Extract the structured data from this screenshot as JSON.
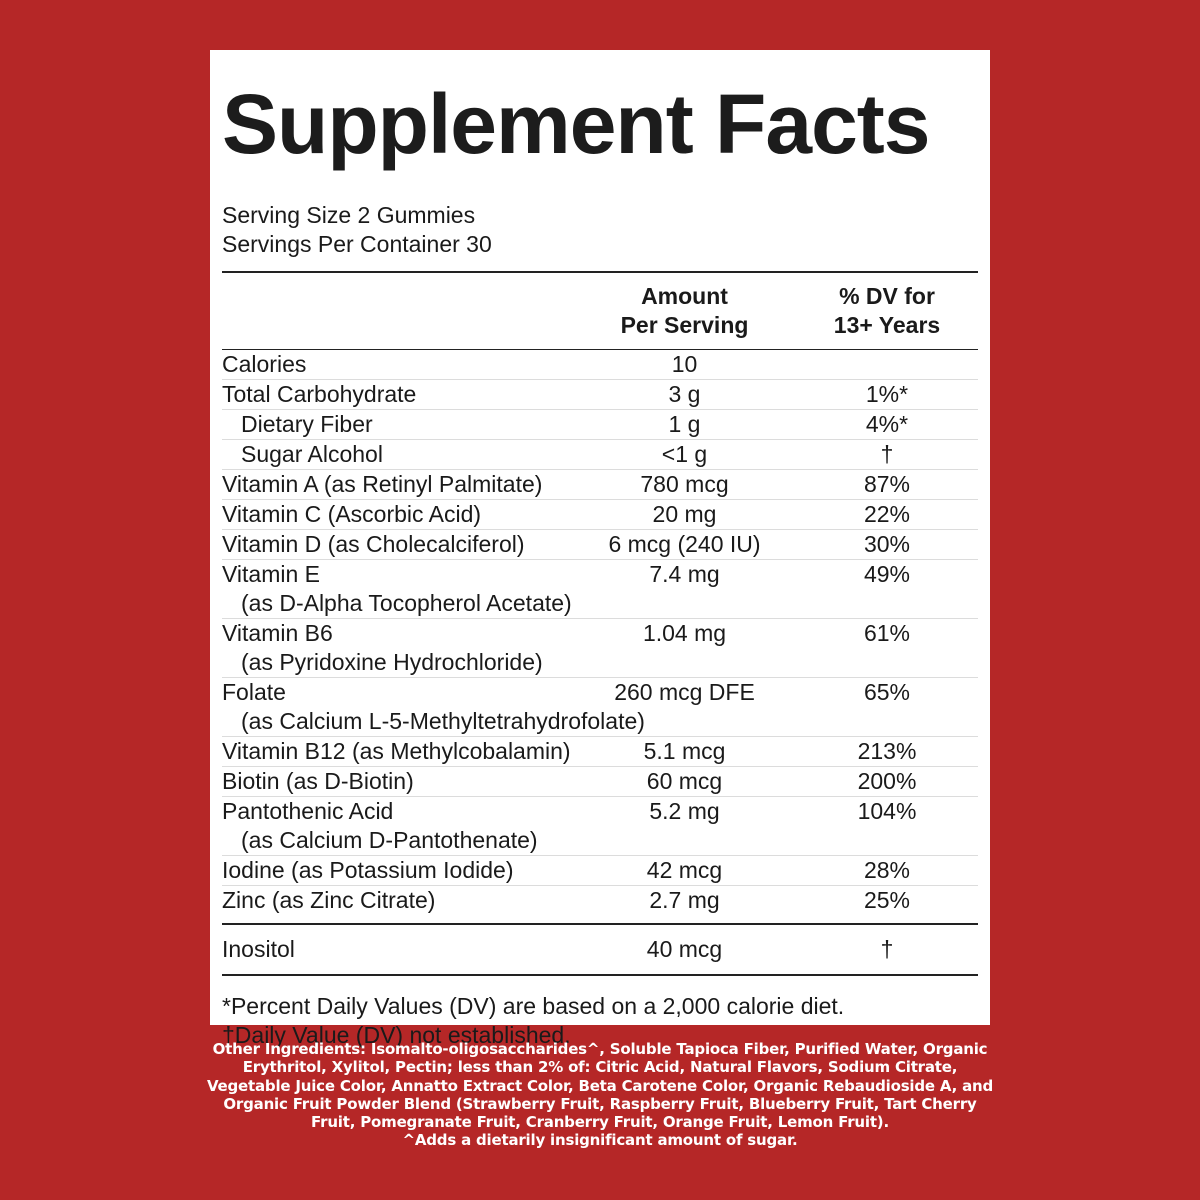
{
  "title": "Supplement Facts",
  "serving_size": "Serving Size 2 Gummies",
  "servings_per_container": "Servings Per Container 30",
  "columns": {
    "amount_line1": "Amount",
    "amount_line2": "Per Serving",
    "dv_line1": "% DV for",
    "dv_line2": "13+ Years"
  },
  "rows": [
    {
      "name": "Calories",
      "amount": "10",
      "dv": ""
    },
    {
      "name": "Total Carbohydrate",
      "amount": "3 g",
      "dv": "1%*"
    },
    {
      "name": "Dietary Fiber",
      "amount": "1 g",
      "dv": "4%*"
    },
    {
      "name": "Sugar Alcohol",
      "amount": "<1 g",
      "dv": "†"
    },
    {
      "name": "Vitamin A (as Retinyl Palmitate)",
      "amount": "780 mcg",
      "dv": "87%"
    },
    {
      "name": "Vitamin C (Ascorbic Acid)",
      "amount": "20 mg",
      "dv": "22%"
    },
    {
      "name": "Vitamin D (as Cholecalciferol)",
      "amount": "6 mcg (240 IU)",
      "dv": "30%"
    },
    {
      "name": "Vitamin E",
      "note": "(as D-Alpha Tocopherol Acetate)",
      "amount": "7.4 mg",
      "dv": "49%"
    },
    {
      "name": "Vitamin B6",
      "note": "(as Pyridoxine Hydrochloride)",
      "amount": "1.04 mg",
      "dv": "61%"
    },
    {
      "name": "Folate",
      "note": "(as Calcium L-5-Methyltetrahydrofolate)",
      "amount": "260 mcg DFE",
      "dv": "65%"
    },
    {
      "name": "Vitamin B12 (as Methylcobalamin)",
      "amount": "5.1 mcg",
      "dv": "213%"
    },
    {
      "name": "Biotin (as D-Biotin)",
      "amount": "60 mcg",
      "dv": "200%"
    },
    {
      "name": "Pantothenic Acid",
      "note": "(as Calcium D-Pantothenate)",
      "amount": "5.2 mg",
      "dv": "104%"
    },
    {
      "name": "Iodine (as Potassium Iodide)",
      "amount": "42 mcg",
      "dv": "28%"
    },
    {
      "name": "Zinc (as Zinc Citrate)",
      "amount": "2.7 mg",
      "dv": "25%"
    }
  ],
  "inositol": {
    "name": "Inositol",
    "amount": "40 mcg",
    "dv": "†"
  },
  "footnote1": "*Percent Daily Values (DV) are based on a 2,000 calorie diet.",
  "footnote2": "†Daily Value (DV) not established.",
  "other_ingredients": "Other Ingredients: Isomalto-oligosaccharides^, Soluble Tapioca Fiber, Purified Water, Organic Erythritol, Xylitol, Pectin; less than 2% of: Citric Acid, Natural Flavors, Sodium Citrate, Vegetable Juice Color, Annatto Extract Color, Beta Carotene Color, Organic Rebaudioside A, and Organic Fruit Powder Blend (Strawberry Fruit, Raspberry Fruit, Blueberry Fruit, Tart Cherry Fruit, Pomegranate Fruit, Cranberry Fruit, Orange Fruit, Lemon Fruit).",
  "sugar_note": "^Adds a dietarily insignificant amount of sugar."
}
